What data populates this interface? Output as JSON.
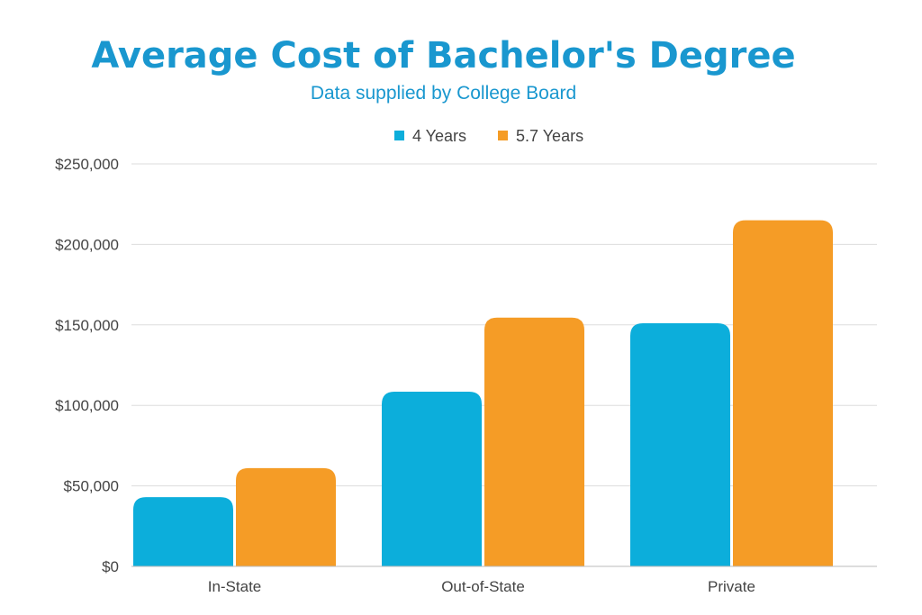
{
  "chart_data": {
    "type": "bar",
    "title": "Average Cost of Bachelor's Degree",
    "subtitle": "Data supplied by College Board",
    "categories": [
      "In-State",
      "Out-of-State",
      "Private"
    ],
    "series": [
      {
        "name": "4 Years",
        "values": [
          43000,
          108500,
          151000
        ],
        "color": "#0caedb"
      },
      {
        "name": "5.7 Years",
        "values": [
          61000,
          154500,
          215000
        ],
        "color": "#f59c26"
      }
    ],
    "ylim": [
      0,
      250000
    ],
    "yticks": [
      0,
      50000,
      100000,
      150000,
      200000,
      250000
    ],
    "ytick_labels": [
      "$0",
      "$50,000",
      "$100,000",
      "$150,000",
      "$200,000",
      "$250,000"
    ],
    "xlabel": "",
    "ylabel": "",
    "grid": true,
    "legend_position": "top-center"
  }
}
